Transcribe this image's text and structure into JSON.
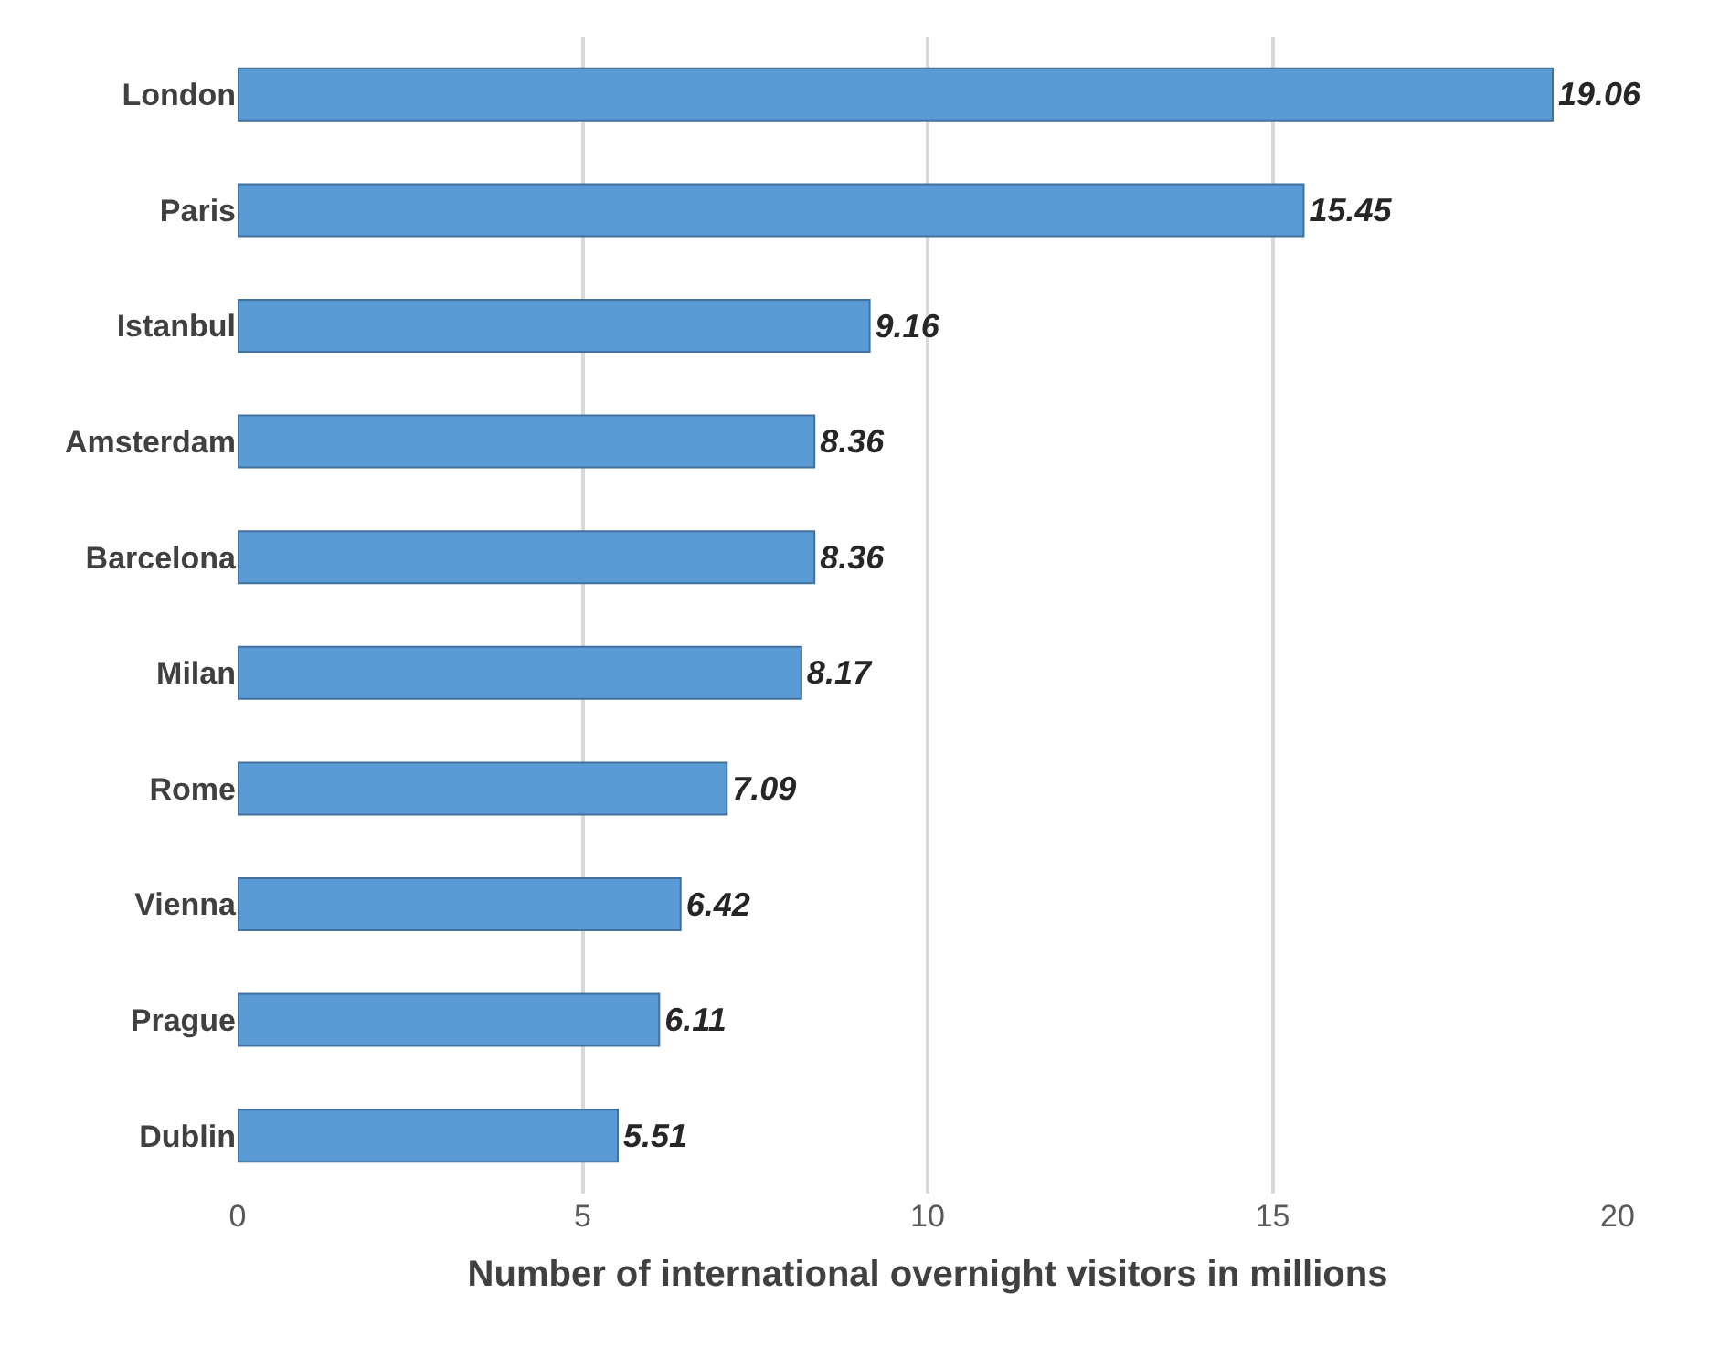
{
  "chart_data": {
    "type": "bar",
    "orientation": "horizontal",
    "xlabel": "Number of international overnight visitors in millions",
    "categories": [
      "London",
      "Paris",
      "Istanbul",
      "Amsterdam",
      "Barcelona",
      "Milan",
      "Rome",
      "Vienna",
      "Prague",
      "Dublin"
    ],
    "values": [
      19.06,
      15.45,
      9.16,
      8.36,
      8.36,
      8.17,
      7.09,
      6.42,
      6.11,
      5.51
    ],
    "color": "#5b9bd5",
    "xlim": [
      0,
      20
    ],
    "xticks": [
      0,
      5,
      10,
      15,
      20
    ],
    "grid": "x",
    "data_labels": true,
    "legend": false
  }
}
